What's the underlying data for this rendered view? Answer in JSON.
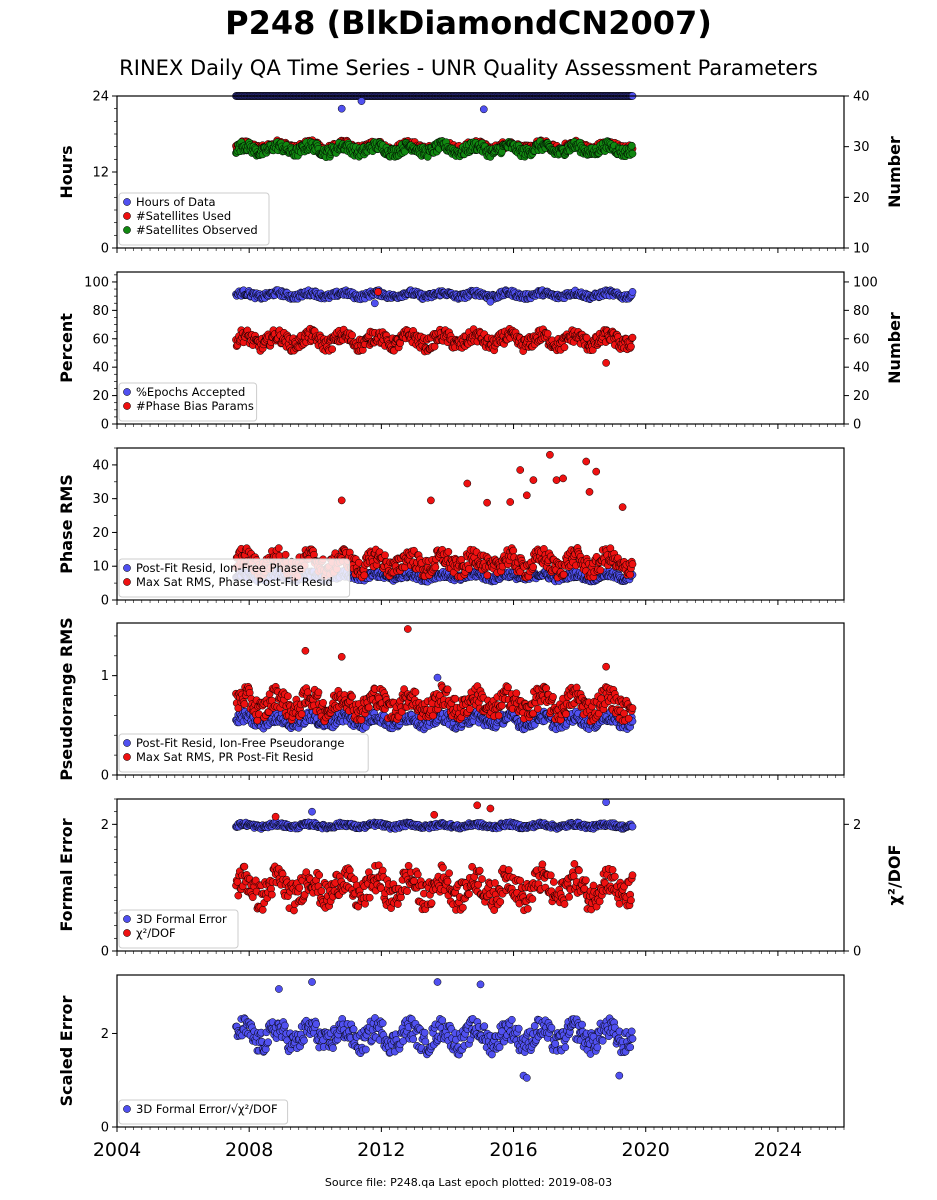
{
  "header": {
    "title": "P248 (BlkDiamondCN2007)",
    "subtitle": "RINEX Daily QA Time Series - UNR Quality Assessment Parameters"
  },
  "footer": {
    "source": "Source file: P248.qa Last epoch plotted: 2019-08-03"
  },
  "colors": {
    "blue": "#5050f0",
    "red": "#ee1111",
    "green": "#118811",
    "edge": "#000000",
    "navy": "#1a1a6e"
  },
  "chart_data": [
    {
      "type": "scatter",
      "panel": "hours",
      "ylabel": "Hours",
      "y2label": "Number",
      "ylim": [
        0,
        24
      ],
      "yticks": [
        "0",
        "12",
        "24"
      ],
      "y2lim": [
        10,
        40
      ],
      "y2ticks": [
        "10",
        "20",
        "30",
        "40"
      ],
      "legend_placement": "lower-left",
      "series": [
        {
          "name": "Hours of Data",
          "color": "#5050f0",
          "axis": "left",
          "level": 24,
          "spread": 0,
          "outliers": [
            [
              2010.8,
              22.0
            ],
            [
              2011.4,
              23.2
            ],
            [
              2015.1,
              21.9
            ]
          ]
        },
        {
          "name": "#Satellites Used",
          "color": "#ee1111",
          "axis": "right",
          "level": 30,
          "spread": 1.0,
          "outliers": [
            [
              2009.0,
              30.2
            ]
          ]
        },
        {
          "name": "#Satellites Observed",
          "color": "#118811",
          "axis": "right",
          "level": 29.5,
          "spread": 1.2,
          "outliers": []
        }
      ]
    },
    {
      "type": "scatter",
      "panel": "percent",
      "ylabel": "Percent",
      "y2label": "Number",
      "ylim": [
        0,
        107
      ],
      "yticks": [
        "0",
        "20",
        "40",
        "60",
        "80",
        "100"
      ],
      "y2lim": [
        0,
        107
      ],
      "y2ticks": [
        "0",
        "20",
        "40",
        "60",
        "80",
        "100"
      ],
      "legend_placement": "lower-left",
      "series": [
        {
          "name": "%Epochs Accepted",
          "color": "#5050f0",
          "axis": "left",
          "level": 91,
          "spread": 2.5,
          "outliers": [
            [
              2011.8,
              85.0
            ],
            [
              2015.3,
              86.0
            ]
          ]
        },
        {
          "name": "#Phase Bias Params",
          "color": "#ee1111",
          "axis": "left",
          "level": 59,
          "spread": 6,
          "outliers": [
            [
              2011.9,
              93.0
            ],
            [
              2018.8,
              43.0
            ]
          ]
        }
      ]
    },
    {
      "type": "scatter",
      "panel": "phase",
      "ylabel": "Phase RMS",
      "ylim": [
        0,
        45
      ],
      "yticks": [
        "0",
        "10",
        "20",
        "30",
        "40"
      ],
      "legend_placement": "lower-left",
      "series": [
        {
          "name": "Post-Fit Resid, Ion-Free Phase",
          "color": "#5050f0",
          "axis": "left",
          "level": 7,
          "spread": 1.2,
          "outliers": []
        },
        {
          "name": "Max Sat RMS, Phase Post-Fit Resid",
          "color": "#ee1111",
          "axis": "left",
          "level": 11,
          "spread": 3.5,
          "outliers": [
            [
              2010.8,
              29.5
            ],
            [
              2013.5,
              29.5
            ],
            [
              2014.6,
              34.5
            ],
            [
              2015.2,
              28.8
            ],
            [
              2015.9,
              29.0
            ],
            [
              2016.2,
              38.5
            ],
            [
              2016.6,
              35.5
            ],
            [
              2017.1,
              43.0
            ],
            [
              2017.3,
              35.5
            ],
            [
              2017.5,
              36.0
            ],
            [
              2018.2,
              41.0
            ],
            [
              2018.5,
              38.0
            ],
            [
              2018.3,
              32.0
            ],
            [
              2019.3,
              27.5
            ],
            [
              2016.4,
              31.0
            ]
          ]
        }
      ]
    },
    {
      "type": "scatter",
      "panel": "pseudorange",
      "ylabel": "Pseudorange RMS",
      "ylim": [
        0,
        1.53
      ],
      "yticks": [
        "0",
        "1"
      ],
      "legend_placement": "lower-left",
      "series": [
        {
          "name": "Post-Fit Resid, Ion-Free Pseudorange",
          "color": "#5050f0",
          "axis": "left",
          "level": 0.55,
          "spread": 0.07,
          "outliers": [
            [
              2013.7,
              0.98
            ]
          ]
        },
        {
          "name": "Max Sat RMS, PR Post-Fit Resid",
          "color": "#ee1111",
          "axis": "left",
          "level": 0.72,
          "spread": 0.14,
          "outliers": [
            [
              2012.8,
              1.47
            ],
            [
              2009.7,
              1.25
            ],
            [
              2010.8,
              1.19
            ],
            [
              2018.8,
              1.09
            ]
          ]
        }
      ]
    },
    {
      "type": "scatter",
      "panel": "formal",
      "ylabel": "Formal Error",
      "y2label": "χ²/DOF",
      "ylim": [
        0,
        2.4
      ],
      "yticks": [
        "0",
        "2"
      ],
      "y2lim": [
        0,
        2.4
      ],
      "y2ticks": [
        "0",
        "2"
      ],
      "legend_placement": "lower-left",
      "series": [
        {
          "name": "3D Formal Error",
          "color": "#5050f0",
          "axis": "left",
          "level": 1.98,
          "spread": 0.04,
          "outliers": [
            [
              2018.8,
              2.35
            ],
            [
              2009.9,
              2.2
            ]
          ]
        },
        {
          "name": "χ²/DOF",
          "color": "#ee1111",
          "axis": "right",
          "level": 1.0,
          "spread": 0.28,
          "outliers": [
            [
              2014.9,
              2.3
            ],
            [
              2015.3,
              2.25
            ],
            [
              2008.8,
              2.12
            ],
            [
              2013.6,
              2.15
            ]
          ]
        }
      ]
    },
    {
      "type": "scatter",
      "panel": "scaled",
      "ylabel": "Scaled Error",
      "ylim": [
        0,
        3.25
      ],
      "yticks": [
        "0",
        "2"
      ],
      "legend_placement": "lower-left",
      "series": [
        {
          "name": "3D Formal Error/√χ²/DOF",
          "color": "#5050f0",
          "axis": "left",
          "level": 1.95,
          "spread": 0.3,
          "outliers": [
            [
              2008.9,
              2.95
            ],
            [
              2009.9,
              3.1
            ],
            [
              2013.7,
              3.1
            ],
            [
              2015.0,
              3.05
            ],
            [
              2016.3,
              1.1
            ],
            [
              2016.4,
              1.05
            ],
            [
              2019.2,
              1.1
            ]
          ]
        }
      ]
    }
  ],
  "xaxis": {
    "xlim": [
      2004,
      2026
    ],
    "ticks": [
      "2004",
      "2008",
      "2012",
      "2016",
      "2020",
      "2024"
    ],
    "data_start": 2007.6,
    "data_end": 2019.6
  }
}
